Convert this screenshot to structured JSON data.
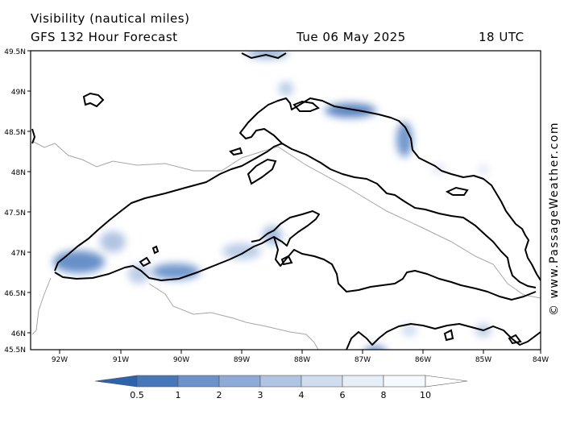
{
  "header": {
    "title": "Visibility (nautical miles)",
    "model": "GFS 132 Hour Forecast",
    "date": "Tue 06 May 2025",
    "time": "18 UTC"
  },
  "credit": "© www.PassageWeather.com",
  "map": {
    "lat_labels": [
      "49.5N",
      "49N",
      "48.5N",
      "48N",
      "47.5N",
      "47N",
      "46.5N",
      "46N",
      "45.5N"
    ],
    "lon_labels": [
      "92W",
      "91W",
      "90W",
      "89W",
      "88W",
      "87W",
      "86W",
      "85W",
      "84W"
    ]
  },
  "legend": {
    "labels": [
      "0.5",
      "1",
      "2",
      "3",
      "4",
      "6",
      "8",
      "10"
    ],
    "colors": [
      "#2d62ad",
      "#4677bb",
      "#6b92c9",
      "#8eaad6",
      "#b0c5e3",
      "#d0ddef",
      "#e7eef8",
      "#f6f9fd",
      "#ffffff"
    ]
  }
}
